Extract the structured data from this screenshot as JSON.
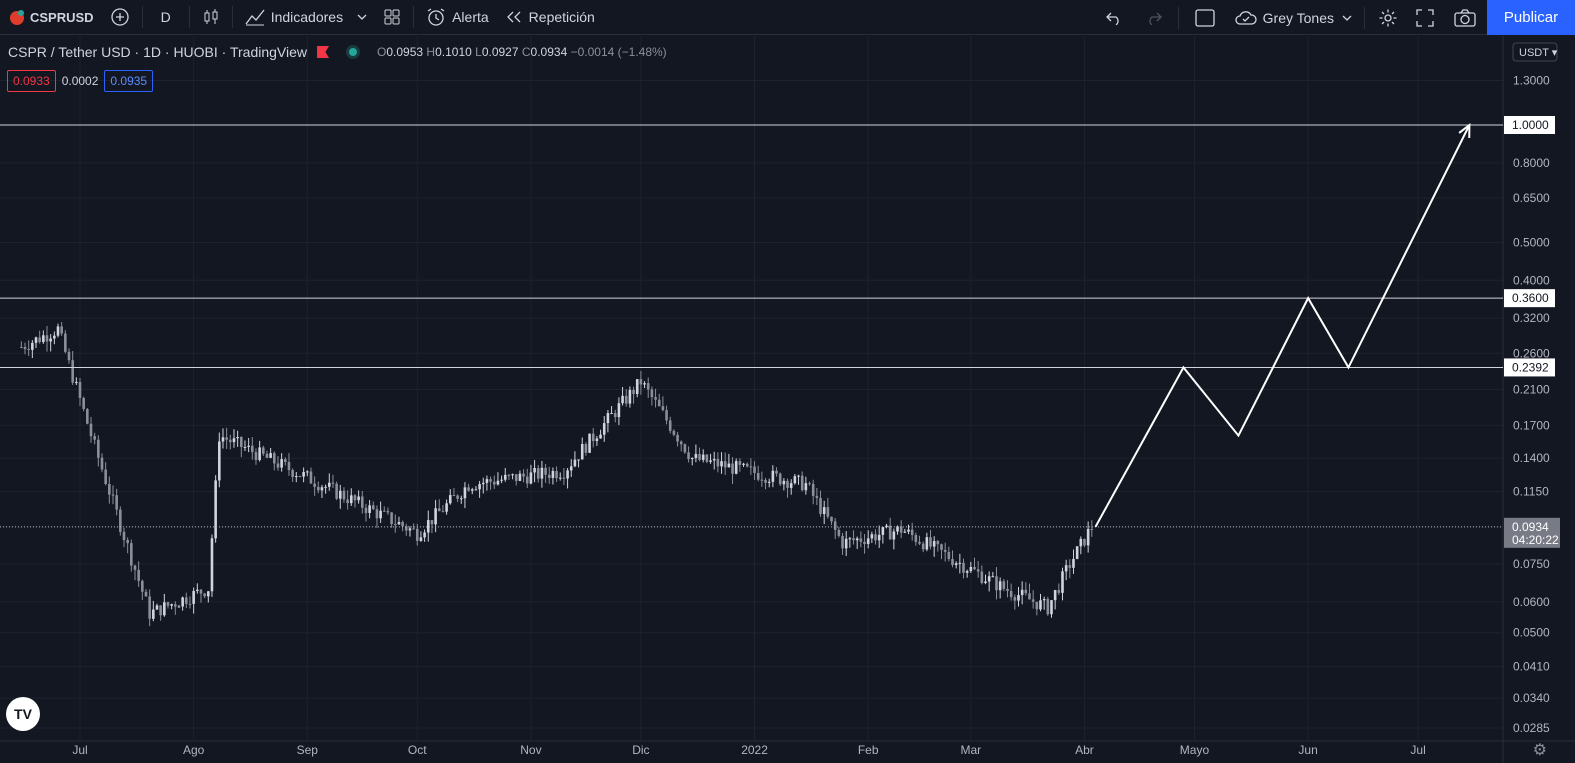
{
  "toolbar": {
    "symbol": "CSPRUSD",
    "interval": "D",
    "indicators_label": "Indicadores",
    "alert_label": "Alerta",
    "replay_label": "Repetición",
    "theme_label": "Grey Tones",
    "publish_label": "Publicar"
  },
  "legend": {
    "title": "CSPR / Tether USD · 1D · HUOBI · TradingView",
    "open_label": "O",
    "open": "0.0953",
    "high_label": "H",
    "high": "0.1010",
    "low_label": "L",
    "low": "0.0927",
    "close_label": "C",
    "close": "0.0934",
    "change": "−0.0014 (−1.48%)"
  },
  "order_prices": {
    "sell": "0.0933",
    "spread": "0.0002",
    "buy": "0.0935"
  },
  "currency_selector": "USDT",
  "colors": {
    "background": "#131722",
    "grid": "#1e222d",
    "candle": "#d1d4dc",
    "candle_dim": "#8a8f99",
    "accent": "#2962ff",
    "sell": "#f23645",
    "buy": "#2962ff"
  },
  "chart_data": {
    "type": "candlestick",
    "symbol": "CSPR / Tether USD",
    "interval": "1D",
    "exchange": "HUOBI",
    "y_scale": "log",
    "y_ticks": [
      "1.3000",
      "1.0000",
      "0.8000",
      "0.6500",
      "0.5000",
      "0.4000",
      "0.3200",
      "0.2600",
      "0.2100",
      "0.1700",
      "0.1400",
      "0.1150",
      "0.0934",
      "0.0750",
      "0.0600",
      "0.0500",
      "0.0410",
      "0.0340",
      "0.0285"
    ],
    "x_ticks": [
      "Jul",
      "Ago",
      "Sep",
      "Oct",
      "Nov",
      "Dic",
      "2022",
      "Feb",
      "Mar",
      "Abr",
      "Mayo",
      "Jun",
      "Jul"
    ],
    "horizontal_levels": [
      {
        "price": "1.0000",
        "value": 1.0
      },
      {
        "price": "0.3600",
        "value": 0.36
      },
      {
        "price": "0.2392",
        "value": 0.2392
      }
    ],
    "current_price": {
      "price": "0.0934",
      "countdown": "04:20:22",
      "value": 0.0934
    },
    "price_path": [
      {
        "date": "2021-06-15",
        "close": 0.27
      },
      {
        "date": "2021-06-25",
        "close": 0.3
      },
      {
        "date": "2021-07-05",
        "close": 0.15
      },
      {
        "date": "2021-07-20",
        "close": 0.056
      },
      {
        "date": "2021-08-05",
        "close": 0.065
      },
      {
        "date": "2021-08-08",
        "close": 0.16
      },
      {
        "date": "2021-09-01",
        "close": 0.125
      },
      {
        "date": "2021-10-01",
        "close": 0.09
      },
      {
        "date": "2021-10-15",
        "close": 0.12
      },
      {
        "date": "2021-11-10",
        "close": 0.13
      },
      {
        "date": "2021-12-01",
        "close": 0.22
      },
      {
        "date": "2021-12-15",
        "close": 0.14
      },
      {
        "date": "2022-01-15",
        "close": 0.12
      },
      {
        "date": "2022-01-25",
        "close": 0.085
      },
      {
        "date": "2022-02-10",
        "close": 0.092
      },
      {
        "date": "2022-03-10",
        "close": 0.065
      },
      {
        "date": "2022-03-22",
        "close": 0.058
      },
      {
        "date": "2022-03-28",
        "close": 0.075
      },
      {
        "date": "2022-04-03",
        "close": 0.0934
      }
    ],
    "projection": [
      {
        "date": "2022-04-04",
        "value": 0.0934
      },
      {
        "date": "2022-04-28",
        "value": 0.2392
      },
      {
        "date": "2022-05-13",
        "value": 0.16
      },
      {
        "date": "2022-06-01",
        "value": 0.36
      },
      {
        "date": "2022-06-12",
        "value": 0.2392
      },
      {
        "date": "2022-07-15",
        "value": 1.0
      }
    ]
  }
}
